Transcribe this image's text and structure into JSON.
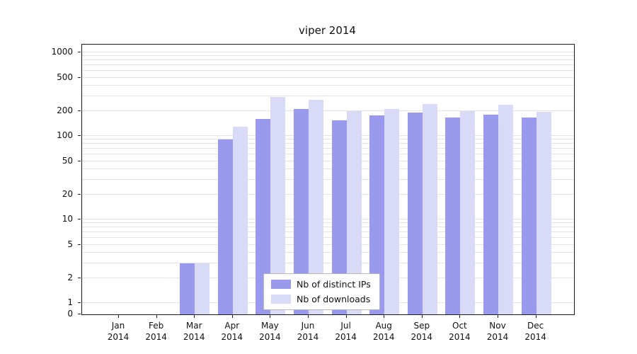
{
  "chart_data": {
    "type": "bar",
    "title": "viper 2014",
    "categories": [
      "Jan 2014",
      "Feb 2014",
      "Mar 2014",
      "Apr 2014",
      "May 2014",
      "Jun 2014",
      "Jul 2014",
      "Aug 2014",
      "Sep 2014",
      "Oct 2014",
      "Nov 2014",
      "Dec 2014"
    ],
    "series": [
      {
        "name": "Nb of distinct IPs",
        "color": "#9999ee",
        "values": [
          0,
          0,
          3,
          90,
          160,
          210,
          155,
          175,
          190,
          165,
          180,
          165
        ]
      },
      {
        "name": "Nb of downloads",
        "color": "#d9d9f8",
        "values": [
          0,
          0,
          3,
          130,
          290,
          270,
          200,
          210,
          240,
          200,
          235,
          195
        ]
      }
    ],
    "yscale": "symlog",
    "y_ticks": [
      0,
      1,
      2,
      5,
      10,
      20,
      50,
      100,
      200,
      500,
      1000
    ],
    "ylim": [
      0,
      1200
    ],
    "grid": true,
    "legend_position": "lower center"
  },
  "colors": {
    "grid": "#e4e4e4",
    "axes": "#1a1a1a",
    "background": "#ffffff"
  }
}
